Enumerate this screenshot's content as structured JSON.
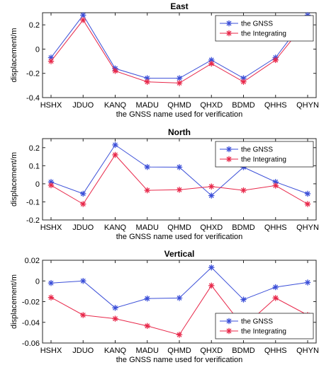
{
  "chart_data": [
    {
      "type": "line",
      "title": "East",
      "xlabel": "the GNSS name used for verification",
      "ylabel": "displacement/m",
      "categories": [
        "HSHX",
        "JDUO",
        "KANQ",
        "MADU",
        "QHMD",
        "QHXD",
        "BDMD",
        "QHHS",
        "QHYN"
      ],
      "ylim": [
        -0.4,
        0.3
      ],
      "yticks": [
        -0.4,
        -0.2,
        0,
        0.2
      ],
      "ytick_labels": [
        "-0.4",
        "-0.2",
        "0",
        "0.2"
      ],
      "legend_position": "top-right",
      "series": [
        {
          "name": "the GNSS",
          "color": "#3b4fd8",
          "marker": "asterisk",
          "values": [
            -0.07,
            0.28,
            -0.16,
            -0.24,
            -0.24,
            -0.09,
            -0.24,
            -0.07,
            0.28
          ]
        },
        {
          "name": "the Integrating",
          "color": "#e8284a",
          "marker": "asterisk",
          "values": [
            -0.1,
            0.24,
            -0.18,
            -0.27,
            -0.28,
            -0.12,
            -0.27,
            -0.09,
            0.24
          ]
        }
      ]
    },
    {
      "type": "line",
      "title": "North",
      "xlabel": "the GNSS name used for verification",
      "ylabel": "displacement/m",
      "categories": [
        "HSHX",
        "JDUO",
        "KANQ",
        "MADU",
        "QHMD",
        "QHXD",
        "BDMD",
        "QHHS",
        "QHYN"
      ],
      "ylim": [
        -0.2,
        0.25
      ],
      "yticks": [
        -0.2,
        -0.1,
        0,
        0.1,
        0.2
      ],
      "ytick_labels": [
        "-0.2",
        "-0.1",
        "0",
        "0.1",
        "0.2"
      ],
      "legend_position": "top-right",
      "series": [
        {
          "name": "the GNSS",
          "color": "#3b4fd8",
          "marker": "asterisk",
          "values": [
            0.01,
            -0.055,
            0.215,
            0.093,
            0.092,
            -0.065,
            0.092,
            0.01,
            -0.055
          ]
        },
        {
          "name": "the Integrating",
          "color": "#e8284a",
          "marker": "asterisk",
          "values": [
            -0.008,
            -0.112,
            0.16,
            -0.036,
            -0.033,
            -0.015,
            -0.036,
            -0.01,
            -0.112
          ]
        }
      ]
    },
    {
      "type": "line",
      "title": "Vertical",
      "xlabel": "the GNSS name used for verification",
      "ylabel": "displacement/m",
      "categories": [
        "HSHX",
        "JDUO",
        "KANQ",
        "MADU",
        "QHMD",
        "QHXD",
        "BDMD",
        "QHHS",
        "QHYN"
      ],
      "ylim": [
        -0.06,
        0.02
      ],
      "yticks": [
        -0.06,
        -0.04,
        -0.02,
        0,
        0.02
      ],
      "ytick_labels": [
        "-0.06",
        "-0.04",
        "-0.02",
        "0",
        "0.02"
      ],
      "legend_position": "bottom-right",
      "series": [
        {
          "name": "the GNSS",
          "color": "#3b4fd8",
          "marker": "asterisk",
          "values": [
            -0.002,
            0.0,
            -0.026,
            -0.017,
            -0.0165,
            0.013,
            -0.018,
            -0.006,
            -0.0015
          ]
        },
        {
          "name": "the Integrating",
          "color": "#e8284a",
          "marker": "asterisk",
          "values": [
            -0.016,
            -0.033,
            -0.0365,
            -0.0435,
            -0.052,
            -0.0045,
            -0.0445,
            -0.0165,
            -0.033
          ]
        }
      ]
    }
  ]
}
